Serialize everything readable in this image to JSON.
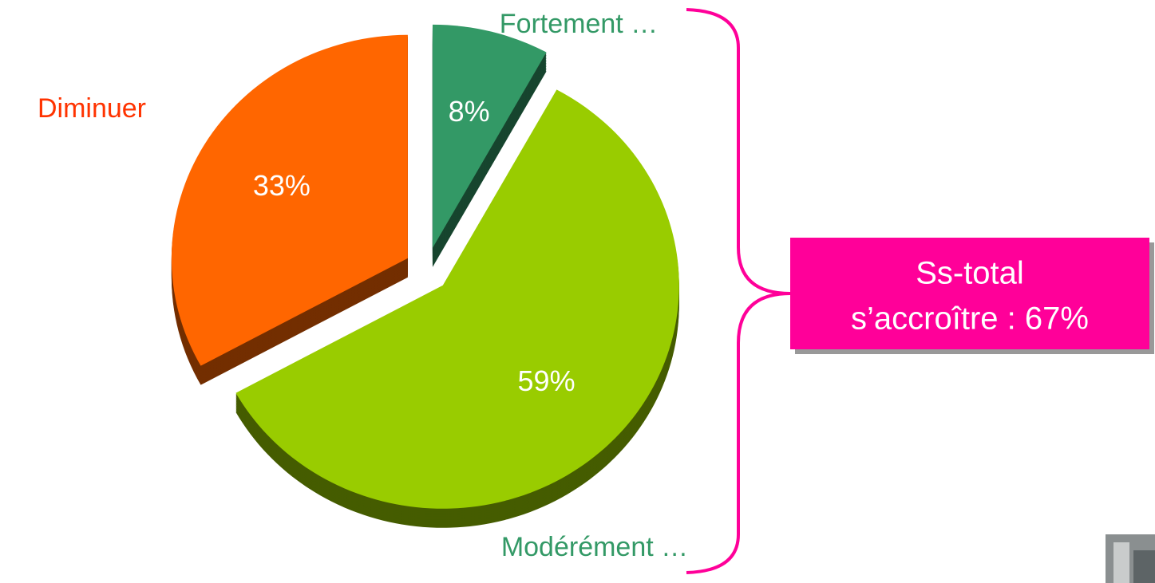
{
  "chart_data": {
    "type": "pie",
    "categories": [
      "Fortement …",
      "Modérément …",
      "Diminuer"
    ],
    "values": [
      8,
      59,
      33
    ],
    "value_labels": [
      "8%",
      "59%",
      "33%"
    ],
    "colors": [
      "#339966",
      "#99cc00",
      "#ff6600"
    ],
    "label_colors": [
      "#339966",
      "#339966",
      "#ff3300"
    ],
    "annotation": [
      "Ss-total",
      "s’accroître : 67%"
    ],
    "annotation_color": "#ff0099"
  }
}
